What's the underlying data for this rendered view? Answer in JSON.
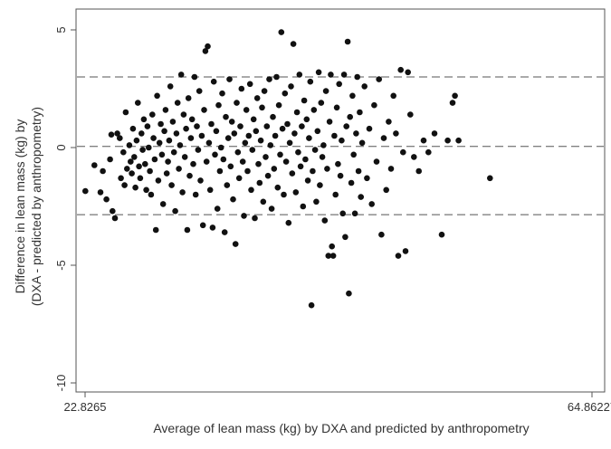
{
  "chart_data": {
    "type": "scatter",
    "title": "",
    "xlabel": "Average of lean mass (kg) by DXA and predicted by anthropometry",
    "ylabel": [
      "Difference in lean mass (kg) by",
      "(DXA - predicted by anthropometry)"
    ],
    "xlim": [
      22.8265,
      64.86227
    ],
    "ylim": [
      -10,
      5
    ],
    "x_ticks": [
      22.8265,
      64.86227
    ],
    "x_tick_labels": [
      "22.8265",
      "64.86227"
    ],
    "y_ticks": [
      5,
      0,
      -5,
      -10
    ],
    "y_tick_labels": [
      "5",
      "0",
      "-5",
      "-10"
    ],
    "grid": false,
    "legend": "none",
    "reference_lines": [
      {
        "y": 3.0,
        "style": "dashed",
        "meaning": "upper limit of agreement"
      },
      {
        "y": 0.05,
        "style": "dashed",
        "meaning": "mean difference"
      },
      {
        "y": -2.85,
        "style": "dashed",
        "meaning": "lower limit of agreement"
      }
    ],
    "marker_color": "#111111",
    "series": [
      {
        "points": [
          [
            22.85,
            -1.85
          ],
          [
            23.6,
            -0.75
          ],
          [
            24.1,
            -1.9
          ],
          [
            24.3,
            -1.0
          ],
          [
            24.6,
            -2.2
          ],
          [
            24.9,
            -0.5
          ],
          [
            25.0,
            0.55
          ],
          [
            25.1,
            -2.7
          ],
          [
            25.3,
            -3.0
          ],
          [
            25.5,
            0.6
          ],
          [
            25.7,
            0.4
          ],
          [
            25.8,
            -1.3
          ],
          [
            26.0,
            -0.2
          ],
          [
            26.1,
            -1.6
          ],
          [
            26.2,
            1.5
          ],
          [
            26.3,
            -0.9
          ],
          [
            26.5,
            0.1
          ],
          [
            26.6,
            -0.6
          ],
          [
            26.7,
            -1.1
          ],
          [
            26.8,
            0.8
          ],
          [
            26.9,
            -0.4
          ],
          [
            27.0,
            -1.7
          ],
          [
            27.1,
            0.3
          ],
          [
            27.2,
            1.9
          ],
          [
            27.3,
            -0.8
          ],
          [
            27.4,
            -1.3
          ],
          [
            27.5,
            0.6
          ],
          [
            27.6,
            -0.1
          ],
          [
            27.7,
            1.2
          ],
          [
            27.8,
            -0.7
          ],
          [
            27.9,
            -1.8
          ],
          [
            28.0,
            0.9
          ],
          [
            28.1,
            0.0
          ],
          [
            28.2,
            -1.0
          ],
          [
            28.3,
            -2.0
          ],
          [
            28.4,
            1.4
          ],
          [
            28.5,
            0.4
          ],
          [
            28.6,
            -0.5
          ],
          [
            28.7,
            -3.5
          ],
          [
            28.8,
            2.2
          ],
          [
            28.9,
            -1.4
          ],
          [
            29.0,
            0.2
          ],
          [
            29.1,
            1.0
          ],
          [
            29.2,
            -0.3
          ],
          [
            29.3,
            -2.4
          ],
          [
            29.4,
            0.7
          ],
          [
            29.5,
            1.6
          ],
          [
            29.6,
            -1.1
          ],
          [
            29.7,
            -0.6
          ],
          [
            29.8,
            0.3
          ],
          [
            29.9,
            2.6
          ],
          [
            30.0,
            -1.6
          ],
          [
            30.1,
            1.1
          ],
          [
            30.2,
            -0.2
          ],
          [
            30.3,
            -2.7
          ],
          [
            30.4,
            0.6
          ],
          [
            30.5,
            1.9
          ],
          [
            30.6,
            -0.9
          ],
          [
            30.7,
            0.1
          ],
          [
            30.8,
            3.1
          ],
          [
            30.9,
            -1.9
          ],
          [
            31.0,
            1.4
          ],
          [
            31.1,
            -0.4
          ],
          [
            31.2,
            0.8
          ],
          [
            31.3,
            -3.5
          ],
          [
            31.4,
            2.1
          ],
          [
            31.5,
            -1.2
          ],
          [
            31.6,
            0.4
          ],
          [
            31.7,
            1.2
          ],
          [
            31.8,
            -0.7
          ],
          [
            31.9,
            3.0
          ],
          [
            32.0,
            -2.0
          ],
          [
            32.1,
            0.9
          ],
          [
            32.2,
            -0.1
          ],
          [
            32.3,
            2.4
          ],
          [
            32.4,
            -1.4
          ],
          [
            32.5,
            0.5
          ],
          [
            32.6,
            -3.3
          ],
          [
            32.7,
            1.6
          ],
          [
            32.8,
            4.1
          ],
          [
            32.9,
            -0.6
          ],
          [
            33.0,
            4.3
          ],
          [
            33.1,
            0.2
          ],
          [
            33.2,
            -1.8
          ],
          [
            33.3,
            1.0
          ],
          [
            33.4,
            -3.4
          ],
          [
            33.5,
            2.8
          ],
          [
            33.6,
            -0.3
          ],
          [
            33.7,
            0.7
          ],
          [
            33.8,
            -2.6
          ],
          [
            33.9,
            1.8
          ],
          [
            34.0,
            -1.0
          ],
          [
            34.1,
            0.0
          ],
          [
            34.2,
            2.3
          ],
          [
            34.3,
            -0.5
          ],
          [
            34.4,
            -3.6
          ],
          [
            34.5,
            1.3
          ],
          [
            34.6,
            -1.6
          ],
          [
            34.7,
            0.4
          ],
          [
            34.8,
            2.9
          ],
          [
            34.9,
            -0.8
          ],
          [
            35.0,
            1.1
          ],
          [
            35.1,
            -2.2
          ],
          [
            35.2,
            0.6
          ],
          [
            35.3,
            -4.1
          ],
          [
            35.4,
            1.9
          ],
          [
            35.5,
            -0.2
          ],
          [
            35.6,
            -1.3
          ],
          [
            35.7,
            0.9
          ],
          [
            35.8,
            2.5
          ],
          [
            35.9,
            -0.6
          ],
          [
            36.0,
            -2.9
          ],
          [
            36.1,
            0.2
          ],
          [
            36.2,
            1.6
          ],
          [
            36.3,
            -1.0
          ],
          [
            36.4,
            0.5
          ],
          [
            36.5,
            2.7
          ],
          [
            36.6,
            -1.8
          ],
          [
            36.7,
            -0.1
          ],
          [
            36.8,
            1.2
          ],
          [
            36.9,
            -3.0
          ],
          [
            37.0,
            0.7
          ],
          [
            37.1,
            2.1
          ],
          [
            37.2,
            -0.7
          ],
          [
            37.3,
            -1.5
          ],
          [
            37.4,
            0.3
          ],
          [
            37.5,
            1.7
          ],
          [
            37.6,
            -2.3
          ],
          [
            37.7,
            2.4
          ],
          [
            37.8,
            -0.4
          ],
          [
            37.9,
            0.9
          ],
          [
            38.0,
            -1.2
          ],
          [
            38.1,
            2.9
          ],
          [
            38.2,
            0.1
          ],
          [
            38.3,
            -2.6
          ],
          [
            38.4,
            1.3
          ],
          [
            38.5,
            -0.9
          ],
          [
            38.6,
            0.5
          ],
          [
            38.7,
            3.0
          ],
          [
            38.8,
            -1.7
          ],
          [
            38.9,
            1.8
          ],
          [
            39.0,
            -0.3
          ],
          [
            39.1,
            4.9
          ],
          [
            39.2,
            0.8
          ],
          [
            39.3,
            -2.0
          ],
          [
            39.4,
            2.3
          ],
          [
            39.5,
            -0.6
          ],
          [
            39.6,
            1.0
          ],
          [
            39.7,
            -3.2
          ],
          [
            39.8,
            0.2
          ],
          [
            39.9,
            2.6
          ],
          [
            40.0,
            -1.1
          ],
          [
            40.1,
            4.4
          ],
          [
            40.2,
            0.6
          ],
          [
            40.3,
            -1.9
          ],
          [
            40.4,
            1.5
          ],
          [
            40.5,
            -0.2
          ],
          [
            40.6,
            3.1
          ],
          [
            40.7,
            -0.8
          ],
          [
            40.8,
            0.9
          ],
          [
            40.9,
            -2.5
          ],
          [
            41.0,
            2.0
          ],
          [
            41.1,
            -0.5
          ],
          [
            41.2,
            1.2
          ],
          [
            41.3,
            -1.4
          ],
          [
            41.4,
            0.4
          ],
          [
            41.5,
            2.8
          ],
          [
            41.6,
            -6.7
          ],
          [
            41.7,
            -1.0
          ],
          [
            41.8,
            1.6
          ],
          [
            41.9,
            -0.1
          ],
          [
            42.0,
            -2.3
          ],
          [
            42.1,
            0.7
          ],
          [
            42.2,
            3.2
          ],
          [
            42.3,
            -1.6
          ],
          [
            42.4,
            1.9
          ],
          [
            42.5,
            -0.4
          ],
          [
            42.6,
            0.1
          ],
          [
            42.7,
            -3.1
          ],
          [
            42.8,
            2.4
          ],
          [
            42.9,
            -0.9
          ],
          [
            43.0,
            -4.6
          ],
          [
            43.1,
            1.1
          ],
          [
            43.2,
            3.1
          ],
          [
            43.3,
            -4.2
          ],
          [
            43.4,
            -4.6
          ],
          [
            43.5,
            0.5
          ],
          [
            43.6,
            -2.0
          ],
          [
            43.7,
            1.7
          ],
          [
            43.8,
            -0.7
          ],
          [
            43.9,
            2.7
          ],
          [
            44.0,
            -1.2
          ],
          [
            44.1,
            0.3
          ],
          [
            44.2,
            -2.8
          ],
          [
            44.3,
            3.1
          ],
          [
            44.4,
            -3.8
          ],
          [
            44.5,
            0.9
          ],
          [
            44.6,
            4.5
          ],
          [
            44.7,
            -6.2
          ],
          [
            44.8,
            1.3
          ],
          [
            44.9,
            -1.5
          ],
          [
            45.0,
            2.2
          ],
          [
            45.1,
            -0.3
          ],
          [
            45.2,
            -2.8
          ],
          [
            45.3,
            0.6
          ],
          [
            45.4,
            3.0
          ],
          [
            45.5,
            -1.0
          ],
          [
            45.6,
            1.5
          ],
          [
            45.7,
            -2.1
          ],
          [
            45.8,
            0.2
          ],
          [
            46.0,
            2.6
          ],
          [
            46.2,
            -1.3
          ],
          [
            46.4,
            0.8
          ],
          [
            46.6,
            -2.4
          ],
          [
            46.8,
            1.8
          ],
          [
            47.0,
            -0.6
          ],
          [
            47.2,
            2.9
          ],
          [
            47.4,
            -3.7
          ],
          [
            47.6,
            0.4
          ],
          [
            47.8,
            -1.8
          ],
          [
            48.0,
            1.1
          ],
          [
            48.2,
            -0.9
          ],
          [
            48.4,
            2.2
          ],
          [
            48.6,
            0.6
          ],
          [
            48.8,
            -4.6
          ],
          [
            49.0,
            3.3
          ],
          [
            49.2,
            -0.2
          ],
          [
            49.4,
            -4.4
          ],
          [
            49.6,
            3.2
          ],
          [
            49.8,
            1.4
          ],
          [
            50.1,
            -0.4
          ],
          [
            50.5,
            -1.0
          ],
          [
            50.9,
            0.3
          ],
          [
            51.3,
            -0.2
          ],
          [
            51.8,
            0.6
          ],
          [
            52.4,
            -3.7
          ],
          [
            52.9,
            0.3
          ],
          [
            53.3,
            1.9
          ],
          [
            53.5,
            2.2
          ],
          [
            53.8,
            0.3
          ],
          [
            56.4,
            -1.3
          ]
        ]
      }
    ]
  }
}
